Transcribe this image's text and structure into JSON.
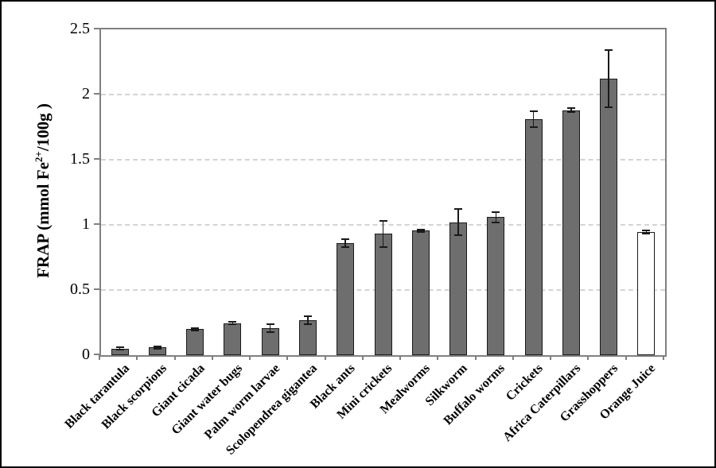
{
  "figure": {
    "y_axis_title": {
      "prefix": "FRAP (mmol Fe",
      "sup": "2+",
      "suffix": "/100g )"
    }
  },
  "colors": {
    "bar_fill_insect": "#6e6e6e",
    "bar_fill_orange_juice": "#ffffff",
    "bar_stroke": "#1a1a1a",
    "error_bar": "#1a1a1a",
    "gridline": "#d4d4d4",
    "axis_frame": "#808080",
    "text": "#000000"
  },
  "chart_data": {
    "type": "bar",
    "title": "",
    "xlabel": "",
    "ylabel": "FRAP (mmol Fe2+/100g)",
    "ylim": [
      0,
      2.5
    ],
    "ytick_values": [
      0,
      0.5,
      1,
      1.5,
      2,
      2.5
    ],
    "ytick_labels": [
      "0",
      "0.5",
      "1",
      "1.5",
      "2",
      "2.5"
    ],
    "grid": "horizontal dashed at each y tick",
    "legend": "none",
    "error_bars": true,
    "categories": [
      "Black tarantula",
      "Black scorpions",
      "Giant cicada",
      "Giant water bugs",
      "Palm worm larvae",
      "Scolopendrea gigantea",
      "Black ants",
      "Mini crickets",
      "Mealworms",
      "Silkworm",
      "Buffalo worms",
      "Crickets",
      "Africa Caterpillars",
      "Grasshoppers",
      "Orange Juice"
    ],
    "values": [
      0.05,
      0.06,
      0.2,
      0.245,
      0.205,
      0.27,
      0.86,
      0.93,
      0.955,
      1.02,
      1.06,
      1.81,
      1.88,
      2.12,
      0.945
    ],
    "errors": [
      0.01,
      0.01,
      0.01,
      0.01,
      0.03,
      0.03,
      0.03,
      0.1,
      0.01,
      0.1,
      0.04,
      0.06,
      0.015,
      0.22,
      0.012
    ],
    "fills": [
      "insect",
      "insect",
      "insect",
      "insect",
      "insect",
      "insect",
      "insect",
      "insect",
      "insect",
      "insect",
      "insect",
      "insect",
      "insect",
      "insect",
      "white"
    ]
  }
}
